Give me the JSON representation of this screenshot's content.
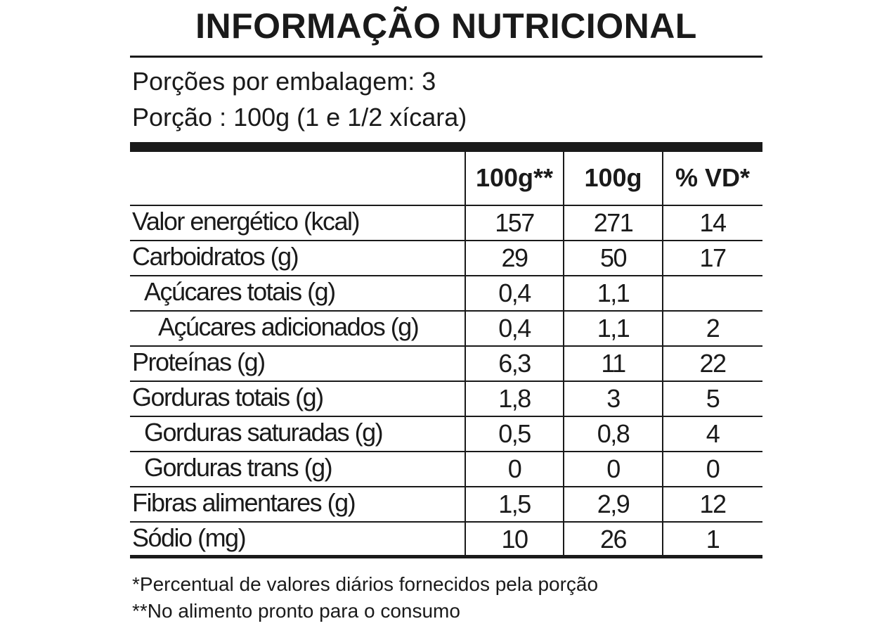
{
  "header": {
    "title": "INFORMAÇÃO NUTRICIONAL",
    "servings": "Porções por embalagem: 3",
    "portion": "Porção : 100g (1 e 1/2 xícara)"
  },
  "table": {
    "columns": [
      "100g**",
      "100g",
      "% VD*"
    ],
    "rows": [
      [
        "Valor energético (kcal)",
        "157",
        "271",
        "14"
      ],
      [
        "Carboidratos (g)",
        "29",
        "50",
        "17"
      ],
      [
        "Açúcares totais (g)",
        "0,4",
        "1,1",
        null
      ],
      [
        "Açúcares adicionados (g)",
        "0,4",
        "1,1",
        "2"
      ],
      [
        "Proteínas (g)",
        "6,3",
        "11",
        "22"
      ],
      [
        "Gorduras totais (g)",
        "1,8",
        "3",
        "5"
      ],
      [
        "Gorduras saturadas (g)",
        "0,5",
        "0,8",
        "4"
      ],
      [
        "Gorduras trans (g)",
        "0",
        "0",
        "0"
      ],
      [
        "Fibras alimentares (g)",
        "1,5",
        "2,9",
        "12"
      ],
      [
        "Sódio (mg)",
        "10",
        "26",
        "1"
      ]
    ]
  },
  "footnotes": [
    "*Percentual de valores diários fornecidos pela porção",
    "**No alimento pronto para o consumo"
  ]
}
